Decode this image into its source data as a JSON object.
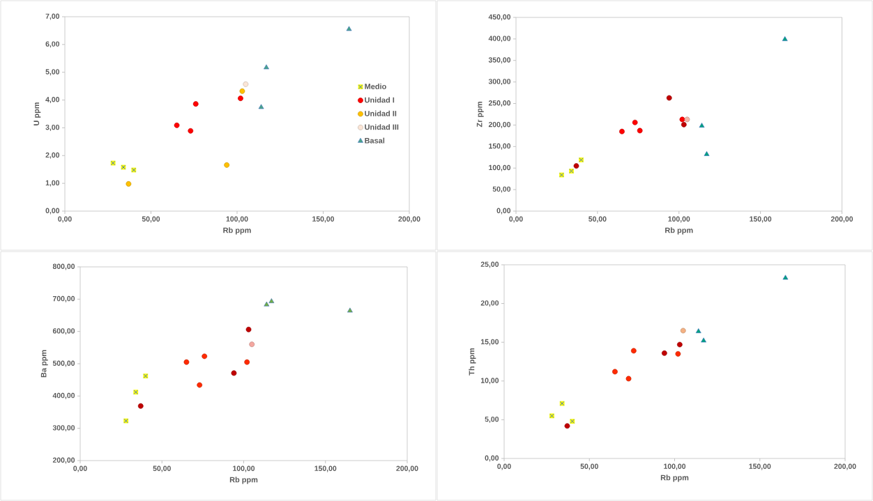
{
  "chart_data": [
    {
      "type": "scatter",
      "xlabel": "Rb ppm",
      "ylabel": "U ppm",
      "legend": "right",
      "xlim": [
        0,
        200
      ],
      "xticks": [
        {
          "value": 0,
          "label": "0,00"
        },
        {
          "value": 50,
          "label": "50,00"
        },
        {
          "value": 100,
          "label": "100,00"
        },
        {
          "value": 150,
          "label": "150,00"
        },
        {
          "value": 200,
          "label": "200,00"
        }
      ],
      "ylim": [
        0,
        7
      ],
      "yticks": [
        {
          "value": 0,
          "label": "0,00"
        },
        {
          "value": 1,
          "label": "1,00"
        },
        {
          "value": 2,
          "label": "2,00"
        },
        {
          "value": 3,
          "label": "3,00"
        },
        {
          "value": 4,
          "label": "4,00"
        },
        {
          "value": 5,
          "label": "5,00"
        },
        {
          "value": 6,
          "label": "6,00"
        },
        {
          "value": 7,
          "label": "7,00"
        }
      ],
      "series": [
        {
          "name": "Medio",
          "color": "#ffff00",
          "marker": "square",
          "x": [
            28,
            34,
            40
          ],
          "values": [
            1.73,
            1.58,
            1.48
          ]
        },
        {
          "name": "Unidad I",
          "color": "#ff0000",
          "marker": "circle",
          "x": [
            65,
            73,
            76,
            102
          ],
          "values": [
            3.09,
            2.89,
            3.86,
            4.06
          ]
        },
        {
          "name": "Unidad II",
          "color": "#ffc000",
          "marker": "circle",
          "x": [
            37,
            94,
            103
          ],
          "values": [
            0.98,
            1.66,
            4.32
          ]
        },
        {
          "name": "Unidad III",
          "color": "#fbe5d6",
          "marker": "circle",
          "x": [
            105
          ],
          "values": [
            4.57
          ]
        },
        {
          "name": "Basal",
          "color": "#4aa38a",
          "marker": "triangle",
          "x": [
            114,
            117,
            165
          ],
          "values": [
            3.74,
            5.17,
            6.55
          ]
        }
      ]
    },
    {
      "type": "scatter",
      "xlabel": "Rb ppm",
      "ylabel": "Zr ppm",
      "xlim": [
        0,
        200
      ],
      "xticks": [
        {
          "value": 0,
          "label": "0,00"
        },
        {
          "value": 50,
          "label": "50,00"
        },
        {
          "value": 100,
          "label": "100,00"
        },
        {
          "value": 150,
          "label": "150,00"
        },
        {
          "value": 200,
          "label": "200,00"
        }
      ],
      "ylim": [
        0,
        450
      ],
      "yticks": [
        {
          "value": 0,
          "label": "0,00"
        },
        {
          "value": 50,
          "label": "50,00"
        },
        {
          "value": 100,
          "label": "100,00"
        },
        {
          "value": 150,
          "label": "150,00"
        },
        {
          "value": 200,
          "label": "200,00"
        },
        {
          "value": 250,
          "label": "250,00"
        },
        {
          "value": 300,
          "label": "300,00"
        },
        {
          "value": 350,
          "label": "350,00"
        },
        {
          "value": 400,
          "label": "400,00"
        },
        {
          "value": 450,
          "label": "450,00"
        }
      ],
      "series": [
        {
          "color": "#ffff00",
          "marker": "square",
          "x": [
            28,
            34,
            40
          ],
          "values": [
            84,
            93,
            119
          ]
        },
        {
          "color": "#ff0000",
          "marker": "circle",
          "x": [
            65,
            73,
            76,
            102
          ],
          "values": [
            185,
            206,
            187,
            213
          ]
        },
        {
          "color": "#c00000",
          "marker": "circle",
          "x": [
            37,
            94,
            103
          ],
          "values": [
            105,
            263,
            201
          ]
        },
        {
          "color": "#f4b6a8",
          "marker": "circle",
          "x": [
            105
          ],
          "values": [
            213
          ]
        },
        {
          "color": "#00a07f",
          "marker": "triangle",
          "x": [
            114,
            117,
            165
          ],
          "values": [
            198,
            132,
            399
          ]
        }
      ]
    },
    {
      "type": "scatter",
      "xlabel": "Rb ppm",
      "ylabel": "Ba ppm",
      "xlim": [
        0,
        200
      ],
      "xticks": [
        {
          "value": 0,
          "label": "0,00"
        },
        {
          "value": 50,
          "label": "50,00"
        },
        {
          "value": 100,
          "label": "100,00"
        },
        {
          "value": 150,
          "label": "150,00"
        },
        {
          "value": 200,
          "label": "200,00"
        }
      ],
      "ylim": [
        200,
        800
      ],
      "yticks": [
        {
          "value": 200,
          "label": "200,00"
        },
        {
          "value": 300,
          "label": "300,00"
        },
        {
          "value": 400,
          "label": "400,00"
        },
        {
          "value": 500,
          "label": "500,00"
        },
        {
          "value": 600,
          "label": "600,00"
        },
        {
          "value": 700,
          "label": "700,00"
        },
        {
          "value": 800,
          "label": "800,00"
        }
      ],
      "series": [
        {
          "color": "#ffff00",
          "marker": "square",
          "x": [
            28,
            34,
            40
          ],
          "values": [
            323,
            412,
            462
          ]
        },
        {
          "color": "#ff2a00",
          "marker": "circle",
          "x": [
            65,
            73,
            76,
            102
          ],
          "values": [
            505,
            434,
            523,
            505
          ]
        },
        {
          "color": "#c00000",
          "marker": "circle",
          "x": [
            37,
            94,
            103
          ],
          "values": [
            369,
            471,
            606
          ]
        },
        {
          "color": "#f4a7a0",
          "marker": "circle",
          "x": [
            105
          ],
          "values": [
            560
          ]
        },
        {
          "color": "#70ad47",
          "marker": "triangle",
          "x": [
            114,
            117,
            165
          ],
          "values": [
            683,
            693,
            664
          ]
        }
      ]
    },
    {
      "type": "scatter",
      "xlabel": "Rb ppm",
      "ylabel": "Th ppm",
      "xlim": [
        0,
        200
      ],
      "xticks": [
        {
          "value": 0,
          "label": "0,00"
        },
        {
          "value": 50,
          "label": "50,00"
        },
        {
          "value": 100,
          "label": "100,00"
        },
        {
          "value": 150,
          "label": "150,00"
        },
        {
          "value": 200,
          "label": "200,00"
        }
      ],
      "ylim": [
        0,
        25
      ],
      "yticks": [
        {
          "value": 0,
          "label": "0,00"
        },
        {
          "value": 5,
          "label": "5,00"
        },
        {
          "value": 10,
          "label": "10,00"
        },
        {
          "value": 15,
          "label": "15,00"
        },
        {
          "value": 20,
          "label": "20,00"
        },
        {
          "value": 25,
          "label": "25,00"
        }
      ],
      "series": [
        {
          "color": "#ffff00",
          "marker": "square",
          "x": [
            28,
            34,
            40
          ],
          "values": [
            5.5,
            7.1,
            4.8
          ]
        },
        {
          "color": "#ff2a00",
          "marker": "circle",
          "x": [
            65,
            73,
            76,
            102
          ],
          "values": [
            11.2,
            10.3,
            13.9,
            13.5
          ]
        },
        {
          "color": "#c00000",
          "marker": "circle",
          "x": [
            37,
            94,
            103
          ],
          "values": [
            4.2,
            13.6,
            14.7
          ]
        },
        {
          "color": "#f4b183",
          "marker": "circle",
          "x": [
            105
          ],
          "values": [
            16.5
          ]
        },
        {
          "color": "#00a07f",
          "marker": "triangle",
          "x": [
            114,
            117,
            165
          ],
          "values": [
            16.4,
            15.2,
            23.3
          ]
        }
      ]
    }
  ]
}
